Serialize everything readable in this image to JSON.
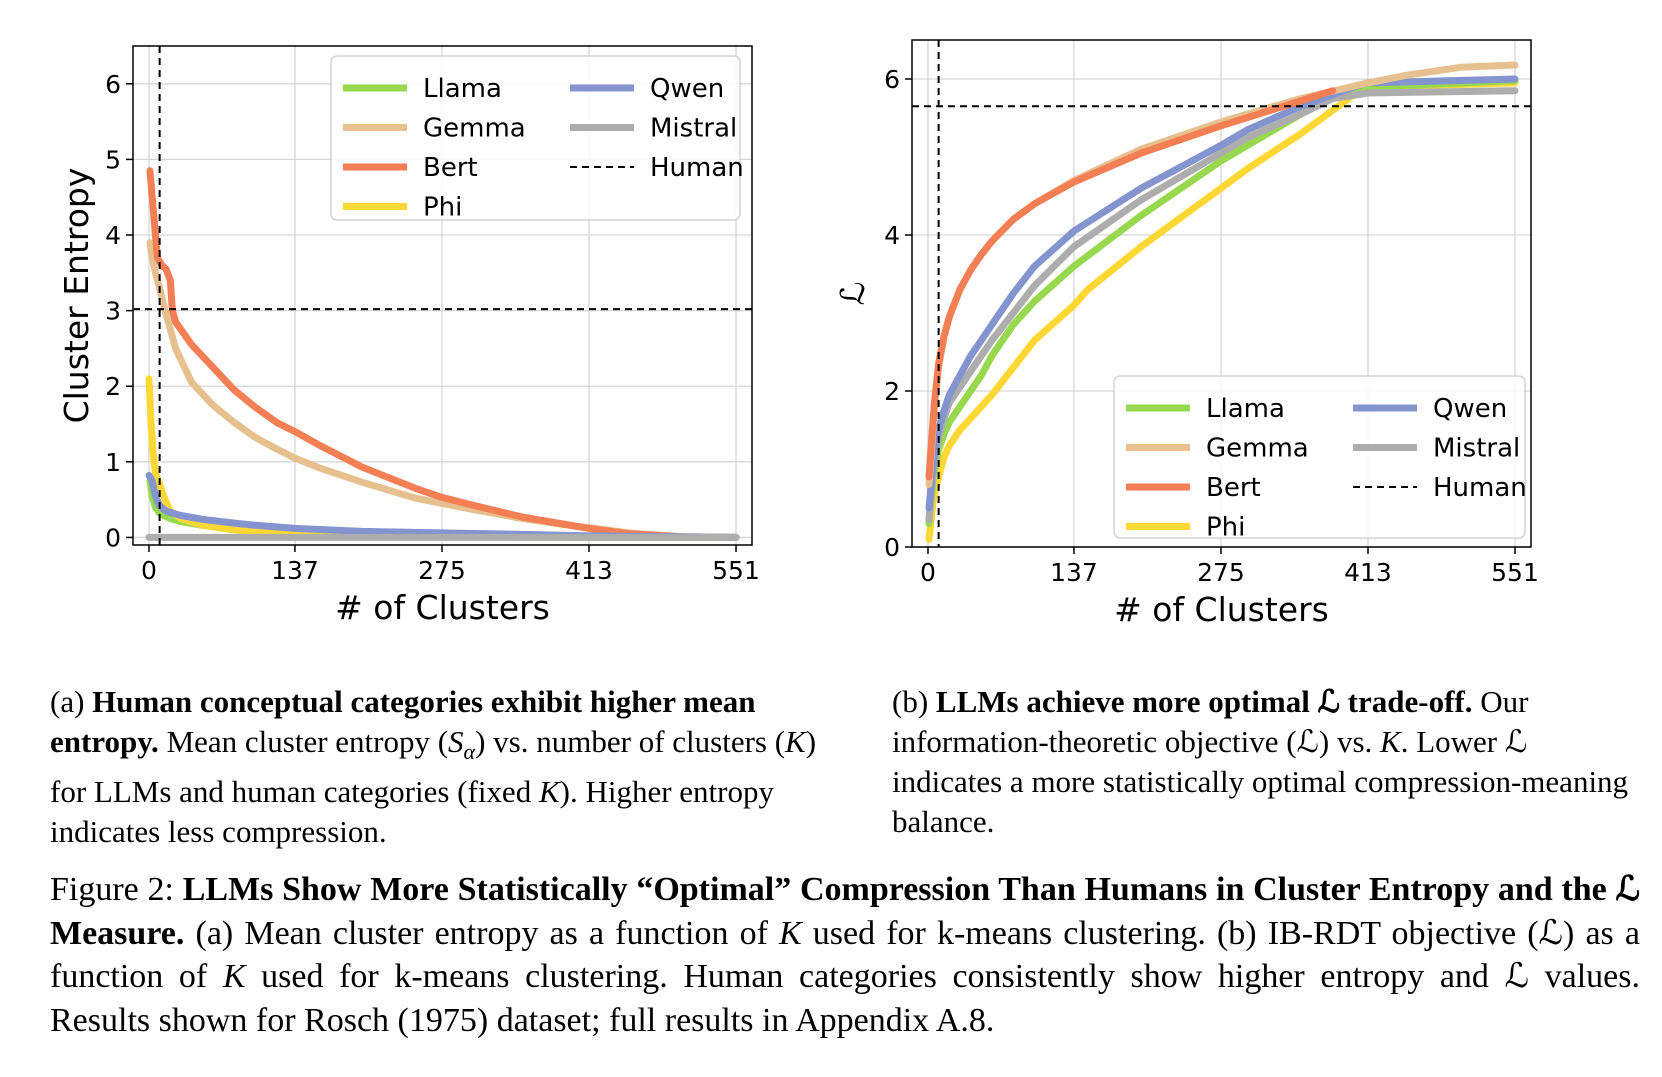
{
  "chart_data": [
    {
      "panel": "a",
      "type": "line",
      "xlabel": "# of Clusters",
      "ylabel": "Cluster Entropy",
      "xticks": [
        0,
        137,
        275,
        413,
        551
      ],
      "yticks": [
        0,
        1,
        2,
        3,
        4,
        5,
        6
      ],
      "xlim": [
        -15,
        566
      ],
      "ylim": [
        -0.1,
        6.5
      ],
      "grid": true,
      "legend_position": "top-right",
      "legend_columns": 2,
      "human_reference": {
        "x": 10,
        "y": 3.02
      },
      "series": [
        {
          "name": "Llama",
          "color": "#98d84f",
          "points": [
            [
              1,
              0.75
            ],
            [
              3,
              0.55
            ],
            [
              6,
              0.4
            ],
            [
              10,
              0.32
            ],
            [
              15,
              0.28
            ],
            [
              20,
              0.25
            ],
            [
              30,
              0.21
            ],
            [
              50,
              0.16
            ],
            [
              80,
              0.11
            ],
            [
              120,
              0.07
            ],
            [
              200,
              0.04
            ],
            [
              300,
              0.02
            ],
            [
              400,
              0.01
            ],
            [
              551,
              0
            ]
          ]
        },
        {
          "name": "Gemma",
          "color": "#e6c18f",
          "points": [
            [
              1,
              3.9
            ],
            [
              3,
              3.7
            ],
            [
              6,
              3.5
            ],
            [
              10,
              3.3
            ],
            [
              15,
              3.0
            ],
            [
              20,
              2.75
            ],
            [
              25,
              2.5
            ],
            [
              30,
              2.35
            ],
            [
              35,
              2.2
            ],
            [
              40,
              2.05
            ],
            [
              50,
              1.9
            ],
            [
              60,
              1.75
            ],
            [
              80,
              1.52
            ],
            [
              100,
              1.32
            ],
            [
              120,
              1.17
            ],
            [
              137,
              1.05
            ],
            [
              160,
              0.92
            ],
            [
              200,
              0.73
            ],
            [
              250,
              0.52
            ],
            [
              275,
              0.45
            ],
            [
              300,
              0.38
            ],
            [
              350,
              0.25
            ],
            [
              400,
              0.15
            ],
            [
              413,
              0.13
            ],
            [
              450,
              0.06
            ],
            [
              500,
              0.01
            ],
            [
              551,
              0
            ]
          ]
        },
        {
          "name": "Bert",
          "color": "#f47f55",
          "points": [
            [
              1,
              4.85
            ],
            [
              3,
              4.5
            ],
            [
              6,
              4.0
            ],
            [
              8,
              3.7
            ],
            [
              12,
              3.6
            ],
            [
              16,
              3.55
            ],
            [
              20,
              3.4
            ],
            [
              22,
              3.0
            ],
            [
              25,
              2.85
            ],
            [
              30,
              2.75
            ],
            [
              40,
              2.55
            ],
            [
              50,
              2.4
            ],
            [
              60,
              2.25
            ],
            [
              70,
              2.1
            ],
            [
              80,
              1.95
            ],
            [
              100,
              1.72
            ],
            [
              120,
              1.52
            ],
            [
              137,
              1.4
            ],
            [
              160,
              1.22
            ],
            [
              200,
              0.93
            ],
            [
              250,
              0.65
            ],
            [
              275,
              0.53
            ],
            [
              300,
              0.44
            ],
            [
              350,
              0.27
            ],
            [
              400,
              0.15
            ],
            [
              413,
              0.12
            ],
            [
              450,
              0.05
            ],
            [
              500,
              0.01
            ],
            [
              551,
              0
            ]
          ]
        },
        {
          "name": "Phi",
          "color": "#fdd835",
          "points": [
            [
              0,
              2.1
            ],
            [
              2,
              1.5
            ],
            [
              4,
              1.1
            ],
            [
              6,
              0.85
            ],
            [
              10,
              0.7
            ],
            [
              15,
              0.5
            ],
            [
              20,
              0.35
            ],
            [
              30,
              0.25
            ],
            [
              50,
              0.16
            ],
            [
              80,
              0.1
            ],
            [
              120,
              0.06
            ],
            [
              200,
              0.03
            ],
            [
              300,
              0.01
            ],
            [
              400,
              0
            ],
            [
              551,
              0
            ]
          ]
        },
        {
          "name": "Qwen",
          "color": "#8394cf",
          "points": [
            [
              0,
              0.82
            ],
            [
              3,
              0.75
            ],
            [
              6,
              0.55
            ],
            [
              10,
              0.42
            ],
            [
              15,
              0.36
            ],
            [
              20,
              0.33
            ],
            [
              30,
              0.29
            ],
            [
              50,
              0.24
            ],
            [
              80,
              0.19
            ],
            [
              100,
              0.16
            ],
            [
              137,
              0.12
            ],
            [
              200,
              0.08
            ],
            [
              275,
              0.06
            ],
            [
              350,
              0.04
            ],
            [
              413,
              0.02
            ],
            [
              500,
              0.01
            ],
            [
              551,
              0
            ]
          ]
        },
        {
          "name": "Mistral",
          "color": "#adadad",
          "points": [
            [
              0,
              0
            ],
            [
              100,
              0
            ],
            [
              200,
              0
            ],
            [
              300,
              0
            ],
            [
              400,
              0
            ],
            [
              551,
              0
            ]
          ]
        }
      ],
      "legend": [
        {
          "label": "Llama",
          "color": "#98d84f",
          "dashed": false
        },
        {
          "label": "Qwen",
          "color": "#8394cf",
          "dashed": false
        },
        {
          "label": "Gemma",
          "color": "#e6c18f",
          "dashed": false
        },
        {
          "label": "Mistral",
          "color": "#adadad",
          "dashed": false
        },
        {
          "label": "Bert",
          "color": "#f47f55",
          "dashed": false
        },
        {
          "label": "Human",
          "color": "#000000",
          "dashed": true
        },
        {
          "label": "Phi",
          "color": "#fdd835",
          "dashed": false
        }
      ]
    },
    {
      "panel": "b",
      "type": "line",
      "xlabel": "# of Clusters",
      "ylabel": "ℒ",
      "xticks": [
        0,
        137,
        275,
        413,
        551
      ],
      "yticks": [
        0,
        2,
        4,
        6
      ],
      "xlim": [
        -15,
        566
      ],
      "ylim": [
        0,
        6.5
      ],
      "grid": true,
      "legend_position": "lower-right",
      "legend_columns": 2,
      "human_reference": {
        "x": 10,
        "y": 5.65
      },
      "series": [
        {
          "name": "Phi",
          "color": "#fdd835",
          "points": [
            [
              1,
              0.1
            ],
            [
              5,
              0.6
            ],
            [
              10,
              0.9
            ],
            [
              15,
              1.15
            ],
            [
              20,
              1.3
            ],
            [
              30,
              1.5
            ],
            [
              40,
              1.65
            ],
            [
              50,
              1.8
            ],
            [
              60,
              1.95
            ],
            [
              80,
              2.3
            ],
            [
              100,
              2.65
            ],
            [
              137,
              3.1
            ],
            [
              150,
              3.3
            ],
            [
              200,
              3.85
            ],
            [
              250,
              4.35
            ],
            [
              275,
              4.6
            ],
            [
              300,
              4.85
            ],
            [
              350,
              5.3
            ],
            [
              380,
              5.6
            ],
            [
              400,
              5.8
            ],
            [
              420,
              5.9
            ],
            [
              551,
              5.95
            ]
          ]
        },
        {
          "name": "Llama",
          "color": "#98d84f",
          "points": [
            [
              1,
              0.3
            ],
            [
              5,
              0.9
            ],
            [
              10,
              1.25
            ],
            [
              15,
              1.45
            ],
            [
              20,
              1.6
            ],
            [
              30,
              1.8
            ],
            [
              40,
              2.0
            ],
            [
              50,
              2.2
            ],
            [
              60,
              2.45
            ],
            [
              80,
              2.85
            ],
            [
              100,
              3.15
            ],
            [
              137,
              3.6
            ],
            [
              200,
              4.25
            ],
            [
              275,
              4.95
            ],
            [
              300,
              5.15
            ],
            [
              350,
              5.55
            ],
            [
              380,
              5.8
            ],
            [
              413,
              5.9
            ],
            [
              551,
              5.98
            ]
          ]
        },
        {
          "name": "Mistral",
          "color": "#adadad",
          "points": [
            [
              1,
              0.35
            ],
            [
              5,
              1.0
            ],
            [
              10,
              1.4
            ],
            [
              15,
              1.65
            ],
            [
              20,
              1.85
            ],
            [
              30,
              2.05
            ],
            [
              40,
              2.25
            ],
            [
              50,
              2.45
            ],
            [
              60,
              2.65
            ],
            [
              80,
              3.0
            ],
            [
              100,
              3.35
            ],
            [
              137,
              3.85
            ],
            [
              200,
              4.45
            ],
            [
              275,
              5.05
            ],
            [
              300,
              5.25
            ],
            [
              350,
              5.55
            ],
            [
              380,
              5.75
            ],
            [
              413,
              5.82
            ],
            [
              551,
              5.85
            ]
          ]
        },
        {
          "name": "Qwen",
          "color": "#8394cf",
          "points": [
            [
              1,
              0.5
            ],
            [
              5,
              1.1
            ],
            [
              10,
              1.5
            ],
            [
              15,
              1.75
            ],
            [
              20,
              1.95
            ],
            [
              30,
              2.2
            ],
            [
              40,
              2.45
            ],
            [
              50,
              2.65
            ],
            [
              60,
              2.85
            ],
            [
              80,
              3.25
            ],
            [
              100,
              3.6
            ],
            [
              137,
              4.05
            ],
            [
              200,
              4.6
            ],
            [
              275,
              5.15
            ],
            [
              300,
              5.35
            ],
            [
              350,
              5.65
            ],
            [
              400,
              5.9
            ],
            [
              413,
              5.95
            ],
            [
              551,
              6.0
            ]
          ]
        },
        {
          "name": "Gemma",
          "color": "#e6c18f",
          "points": [
            [
              1,
              0.8
            ],
            [
              3,
              1.2
            ],
            [
              6,
              1.8
            ],
            [
              10,
              2.3
            ],
            [
              15,
              2.7
            ],
            [
              20,
              2.95
            ],
            [
              30,
              3.3
            ],
            [
              40,
              3.55
            ],
            [
              50,
              3.75
            ],
            [
              60,
              3.92
            ],
            [
              80,
              4.2
            ],
            [
              100,
              4.4
            ],
            [
              137,
              4.7
            ],
            [
              200,
              5.1
            ],
            [
              275,
              5.45
            ],
            [
              350,
              5.75
            ],
            [
              413,
              5.95
            ],
            [
              450,
              6.05
            ],
            [
              500,
              6.15
            ],
            [
              551,
              6.18
            ]
          ]
        },
        {
          "name": "Bert",
          "color": "#f47f55",
          "points": [
            [
              1,
              0.9
            ],
            [
              3,
              1.3
            ],
            [
              6,
              1.85
            ],
            [
              10,
              2.35
            ],
            [
              15,
              2.7
            ],
            [
              20,
              2.95
            ],
            [
              30,
              3.3
            ],
            [
              40,
              3.55
            ],
            [
              50,
              3.75
            ],
            [
              60,
              3.92
            ],
            [
              80,
              4.2
            ],
            [
              100,
              4.4
            ],
            [
              137,
              4.68
            ],
            [
              200,
              5.05
            ],
            [
              275,
              5.4
            ],
            [
              350,
              5.72
            ],
            [
              380,
              5.85
            ]
          ]
        }
      ],
      "legend": [
        {
          "label": "Llama",
          "color": "#98d84f",
          "dashed": false
        },
        {
          "label": "Qwen",
          "color": "#8394cf",
          "dashed": false
        },
        {
          "label": "Gemma",
          "color": "#e6c18f",
          "dashed": false
        },
        {
          "label": "Mistral",
          "color": "#adadad",
          "dashed": false
        },
        {
          "label": "Bert",
          "color": "#f47f55",
          "dashed": false
        },
        {
          "label": "Human",
          "color": "#000000",
          "dashed": true
        },
        {
          "label": "Phi",
          "color": "#fdd835",
          "dashed": false
        }
      ]
    }
  ],
  "captions": {
    "a": {
      "tag": "(a)",
      "bold": "Human conceptual categories exhibit higher mean entropy.",
      "text1": " Mean cluster entropy (",
      "sym1": "S",
      "sub1": "α",
      "text2": ") vs. number of clusters (",
      "sym2": "K",
      "text3": ") for LLMs and human categories (fixed ",
      "sym3": "K",
      "text4": "). Higher entropy indicates less compression."
    },
    "b": {
      "tag": "(b)",
      "bold": "LLMs achieve more optimal ℒ trade-off.",
      "text1": " Our information-theoretic objective (ℒ) vs. ",
      "sym1": "K",
      "text2": ". Lower ℒ indicates a more statistically optimal compression-meaning balance."
    },
    "figure": {
      "tag": "Figure 2: ",
      "bold": "LLMs Show More Statistically “Optimal” Compression Than Humans in Cluster Entropy and the ℒ Measure.",
      "text1": " (a) Mean cluster entropy as a function of ",
      "sym1": "K",
      "text2": " used for k-means clustering. (b) IB-RDT objective (ℒ) as a function of ",
      "sym2": "K",
      "text3": " used for k-means clustering. Human categories consistently show higher entropy and ℒ values. Results shown for Rosch (1975) dataset; full results in Appendix A.8."
    }
  }
}
